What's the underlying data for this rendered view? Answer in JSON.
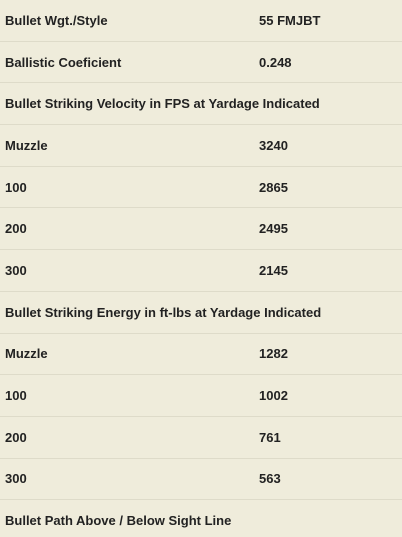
{
  "rows": [
    {
      "label": "Bullet Wgt./Style",
      "value": "55 FMJBT"
    },
    {
      "label": "Ballistic Coeficient",
      "value": "0.248"
    },
    {
      "label": "Bullet Striking Velocity in FPS at Yardage Indicated",
      "value": ""
    },
    {
      "label": "Muzzle",
      "value": "3240"
    },
    {
      "label": "100",
      "value": "2865"
    },
    {
      "label": "200",
      "value": "2495"
    },
    {
      "label": "300",
      "value": "2145"
    },
    {
      "label": "Bullet Striking Energy in ft-lbs at Yardage Indicated",
      "value": ""
    },
    {
      "label": "Muzzle",
      "value": "1282"
    },
    {
      "label": "100",
      "value": "1002"
    },
    {
      "label": "200",
      "value": "761"
    },
    {
      "label": "300",
      "value": "563"
    },
    {
      "label": "Bullet Path Above / Below Sight Line",
      "value": ""
    }
  ]
}
